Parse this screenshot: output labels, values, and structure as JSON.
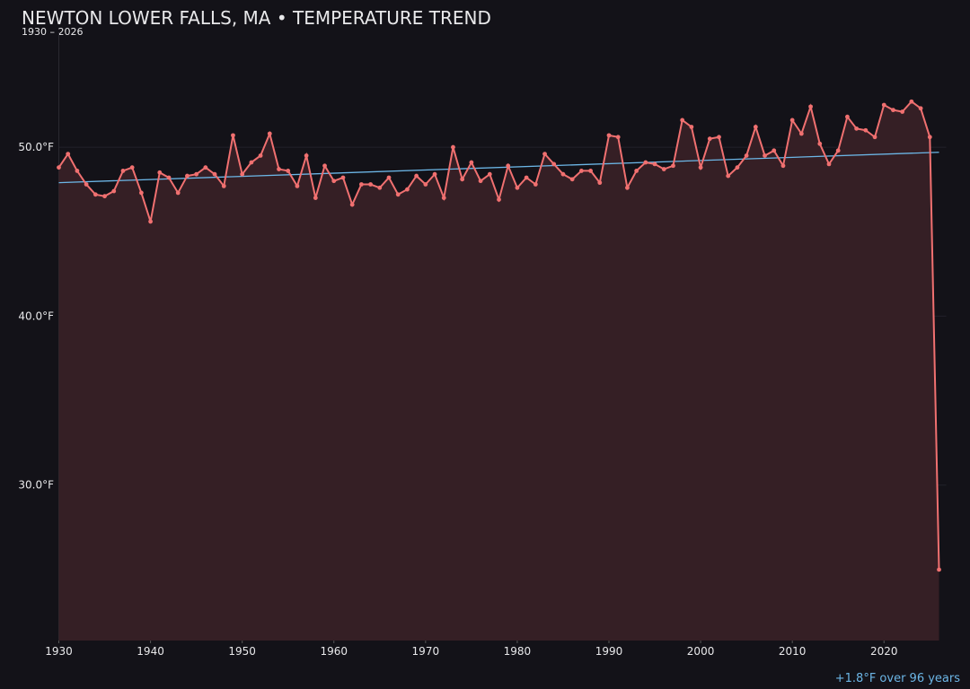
{
  "chart_data": {
    "type": "line",
    "title": "NEWTON LOWER FALLS, MA • TEMPERATURE TREND",
    "subtitle": "1930 – 2026",
    "annotation": "+1.8°F over 96 years",
    "x": [
      1930,
      1931,
      1932,
      1933,
      1934,
      1935,
      1936,
      1937,
      1938,
      1939,
      1940,
      1941,
      1942,
      1943,
      1944,
      1945,
      1946,
      1947,
      1948,
      1949,
      1950,
      1951,
      1952,
      1953,
      1954,
      1955,
      1956,
      1957,
      1958,
      1959,
      1960,
      1961,
      1962,
      1963,
      1964,
      1965,
      1966,
      1967,
      1968,
      1969,
      1970,
      1971,
      1972,
      1973,
      1974,
      1975,
      1976,
      1977,
      1978,
      1979,
      1980,
      1981,
      1982,
      1983,
      1984,
      1985,
      1986,
      1987,
      1988,
      1989,
      1990,
      1991,
      1992,
      1993,
      1994,
      1995,
      1996,
      1997,
      1998,
      1999,
      2000,
      2001,
      2002,
      2003,
      2004,
      2005,
      2006,
      2007,
      2008,
      2009,
      2010,
      2011,
      2012,
      2013,
      2014,
      2015,
      2016,
      2017,
      2018,
      2019,
      2020,
      2021,
      2022,
      2023,
      2024,
      2025,
      2026
    ],
    "series": [
      {
        "color": "#f07070",
        "fill": "#351f25",
        "values": [
          48.8,
          49.6,
          48.6,
          47.8,
          47.2,
          47.1,
          47.4,
          48.6,
          48.8,
          47.3,
          45.6,
          48.5,
          48.2,
          47.3,
          48.3,
          48.4,
          48.8,
          48.4,
          47.7,
          50.7,
          48.4,
          49.1,
          49.5,
          50.8,
          48.7,
          48.6,
          47.7,
          49.5,
          47.0,
          48.9,
          48.0,
          48.2,
          46.6,
          47.8,
          47.8,
          47.6,
          48.2,
          47.2,
          47.5,
          48.3,
          47.8,
          48.4,
          47.0,
          50.0,
          48.1,
          49.1,
          48.0,
          48.4,
          46.9,
          48.9,
          47.6,
          48.2,
          47.8,
          49.6,
          49.0,
          48.4,
          48.1,
          48.6,
          48.6,
          47.9,
          50.7,
          50.6,
          47.6,
          48.6,
          49.1,
          49.0,
          48.7,
          48.9,
          51.6,
          51.2,
          48.8,
          50.5,
          50.6,
          48.3,
          48.8,
          49.5,
          51.2,
          49.5,
          49.8,
          48.9,
          51.6,
          50.8,
          52.4,
          50.2,
          49.0,
          49.8,
          51.8,
          51.1,
          51.0,
          50.6,
          52.5,
          52.2,
          52.1,
          52.7,
          52.3,
          50.6,
          25.0
        ]
      }
    ],
    "trend": {
      "color": "#6cb6e6",
      "x": [
        1930,
        2026
      ],
      "values": [
        47.9,
        49.7
      ]
    },
    "xlim": [
      1930,
      2026
    ],
    "xticks": [
      1930,
      1940,
      1950,
      1960,
      1970,
      1980,
      1990,
      2000,
      2010,
      2020
    ],
    "ylim": [
      20.8,
      56.8
    ],
    "yticks": [
      {
        "value": 30,
        "label": "30.0°F"
      },
      {
        "value": 40,
        "label": "40.0°F"
      },
      {
        "value": 50,
        "label": "50.0°F"
      }
    ],
    "grid": true
  }
}
